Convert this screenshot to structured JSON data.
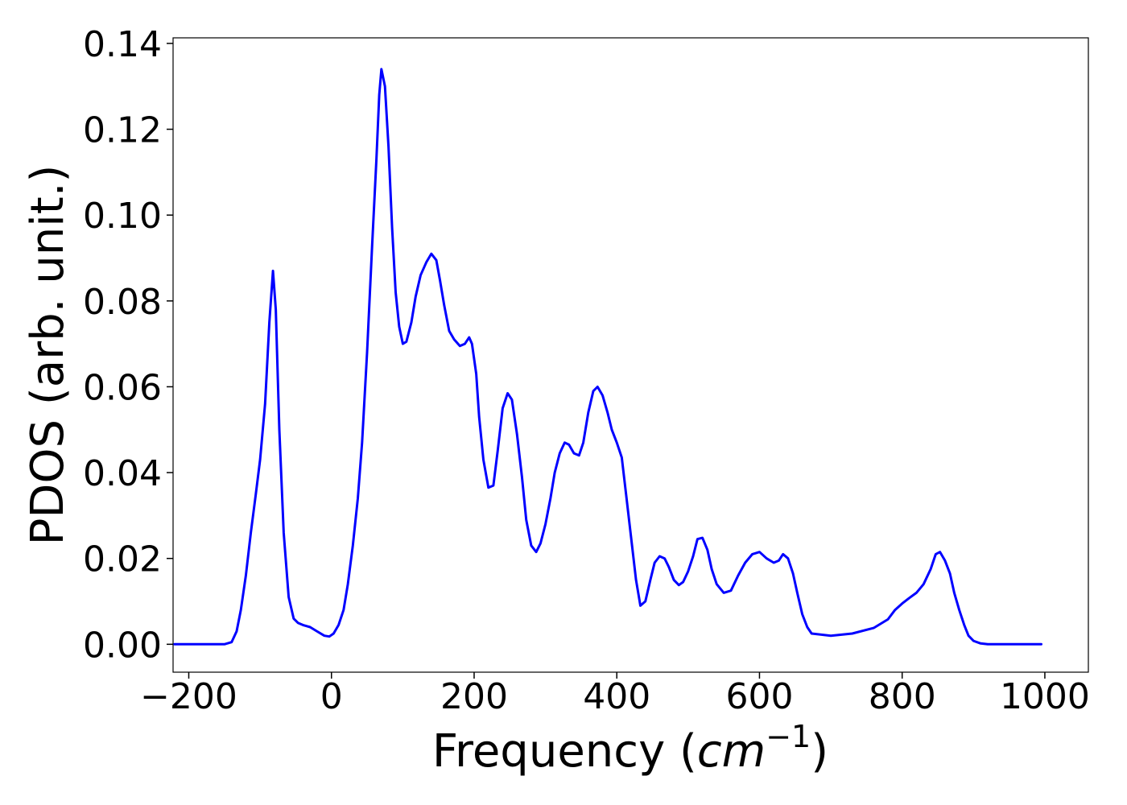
{
  "chart_data": {
    "type": "line",
    "title": "",
    "xlabel": "Frequency (cm⁻¹)",
    "xlabel_parts": {
      "prefix": "Frequency (",
      "unit_base": "cm",
      "unit_exp": "−1",
      "suffix": ")"
    },
    "ylabel": "PDOS (arb. unit.)",
    "xlim": [
      -222,
      1061
    ],
    "ylim": [
      -0.0065,
      0.1413
    ],
    "xticks": [
      -200,
      0,
      200,
      400,
      600,
      800,
      1000
    ],
    "xtick_labels": [
      "−200",
      "0",
      "200",
      "400",
      "600",
      "800",
      "1000"
    ],
    "yticks": [
      0.0,
      0.02,
      0.04,
      0.06,
      0.08,
      0.1,
      0.12,
      0.14
    ],
    "ytick_labels": [
      "0.00",
      "0.02",
      "0.04",
      "0.06",
      "0.08",
      "0.10",
      "0.12",
      "0.14"
    ],
    "grid": false,
    "legend": "none",
    "series": [
      {
        "color": "#0000ff",
        "x": [
          -220,
          -150,
          -140,
          -133,
          -127,
          -120,
          -113,
          -106,
          -100,
          -93,
          -87,
          -82,
          -78,
          -73,
          -67,
          -60,
          -53,
          -47,
          -40,
          -30,
          -20,
          -10,
          -3,
          3,
          10,
          17,
          23,
          30,
          37,
          43,
          50,
          57,
          63,
          67,
          70,
          75,
          80,
          85,
          90,
          95,
          100,
          105,
          112,
          118,
          125,
          133,
          140,
          147,
          152,
          158,
          165,
          172,
          180,
          187,
          193,
          197,
          203,
          207,
          213,
          220,
          227,
          233,
          240,
          247,
          253,
          260,
          267,
          273,
          280,
          287,
          293,
          300,
          307,
          313,
          320,
          327,
          333,
          340,
          347,
          353,
          360,
          367,
          373,
          380,
          387,
          393,
          400,
          407,
          413,
          420,
          427,
          433,
          440,
          447,
          453,
          460,
          467,
          473,
          480,
          487,
          493,
          500,
          507,
          513,
          520,
          527,
          533,
          540,
          550,
          560,
          570,
          580,
          590,
          600,
          610,
          620,
          627,
          633,
          640,
          647,
          653,
          660,
          667,
          673,
          700,
          730,
          760,
          780,
          790,
          800,
          810,
          820,
          830,
          840,
          847,
          853,
          860,
          867,
          873,
          880,
          887,
          893,
          900,
          910,
          920,
          995
        ],
        "y": [
          0.0,
          0.0,
          0.0005,
          0.003,
          0.008,
          0.016,
          0.026,
          0.035,
          0.043,
          0.056,
          0.075,
          0.087,
          0.078,
          0.05,
          0.026,
          0.011,
          0.006,
          0.005,
          0.0045,
          0.004,
          0.003,
          0.002,
          0.0018,
          0.0025,
          0.0045,
          0.008,
          0.014,
          0.023,
          0.034,
          0.047,
          0.068,
          0.093,
          0.113,
          0.128,
          0.134,
          0.13,
          0.116,
          0.097,
          0.082,
          0.074,
          0.07,
          0.0705,
          0.075,
          0.081,
          0.086,
          0.089,
          0.091,
          0.0895,
          0.085,
          0.079,
          0.073,
          0.071,
          0.0695,
          0.07,
          0.0715,
          0.07,
          0.063,
          0.053,
          0.043,
          0.0365,
          0.037,
          0.045,
          0.055,
          0.0585,
          0.057,
          0.049,
          0.039,
          0.029,
          0.023,
          0.0215,
          0.0235,
          0.028,
          0.034,
          0.04,
          0.0445,
          0.047,
          0.0465,
          0.0445,
          0.044,
          0.047,
          0.054,
          0.059,
          0.06,
          0.058,
          0.054,
          0.05,
          0.047,
          0.0435,
          0.035,
          0.025,
          0.015,
          0.009,
          0.01,
          0.015,
          0.019,
          0.0205,
          0.02,
          0.018,
          0.015,
          0.0138,
          0.0145,
          0.017,
          0.0205,
          0.0245,
          0.0248,
          0.022,
          0.0175,
          0.014,
          0.012,
          0.0125,
          0.016,
          0.019,
          0.021,
          0.0215,
          0.02,
          0.019,
          0.0195,
          0.021,
          0.02,
          0.0165,
          0.012,
          0.007,
          0.004,
          0.0025,
          0.002,
          0.0025,
          0.0038,
          0.0058,
          0.008,
          0.0095,
          0.0108,
          0.012,
          0.014,
          0.0175,
          0.021,
          0.0215,
          0.0195,
          0.0165,
          0.012,
          0.008,
          0.0045,
          0.002,
          0.0008,
          0.0002,
          0.0,
          0.0
        ]
      }
    ]
  }
}
